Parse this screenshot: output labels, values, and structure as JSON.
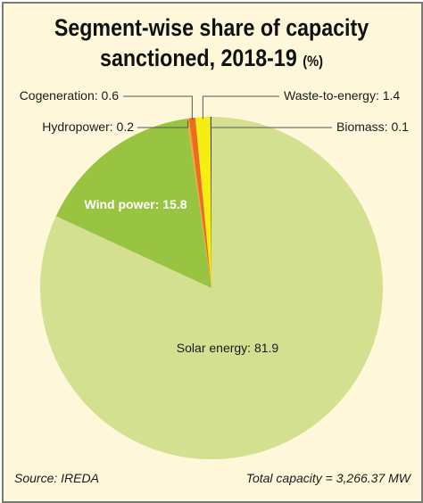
{
  "title_line1": "Segment-wise share of capacity",
  "title_line2": "sanctioned, 2018-19",
  "title_unit": "(%)",
  "source": "Source: IREDA",
  "total_capacity": "Total capacity = 3,266.37 MW",
  "chart_data": {
    "type": "pie",
    "title": "Segment-wise share of capacity sanctioned, 2018-19 (%)",
    "slices": [
      {
        "name": "Solar energy",
        "value": 81.9,
        "label": "Solar energy: 81.9",
        "color": "#d3e08f"
      },
      {
        "name": "Wind power",
        "value": 15.8,
        "label": "Wind power: 15.8",
        "color": "#98c441"
      },
      {
        "name": "Hydropower",
        "value": 0.2,
        "label": "Hydropower: 0.2",
        "color": "#f3a43a"
      },
      {
        "name": "Cogeneration",
        "value": 0.6,
        "label": "Cogeneration: 0.6",
        "color": "#ec6c1f"
      },
      {
        "name": "Waste-to-energy",
        "value": 1.4,
        "label": "Waste-to-energy: 1.4",
        "color": "#f5ee12"
      },
      {
        "name": "Biomass",
        "value": 0.1,
        "label": "Biomass: 0.1",
        "color": "#3f3f3f"
      }
    ]
  }
}
